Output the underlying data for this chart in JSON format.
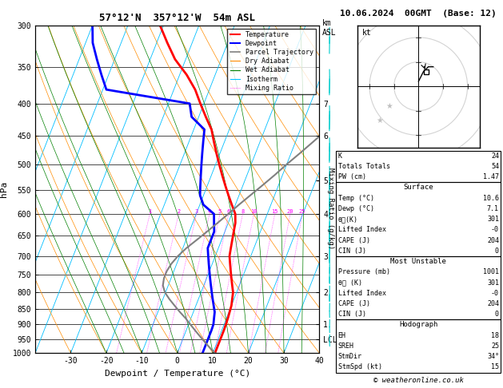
{
  "title_left": "57°12'N  357°12'W  54m ASL",
  "title_right": "10.06.2024  00GMT  (Base: 12)",
  "copyright": "© weatheronline.co.uk",
  "xlabel": "Dewpoint / Temperature (°C)",
  "ylabel_left": "hPa",
  "pressure_levels": [
    300,
    350,
    400,
    450,
    500,
    550,
    600,
    650,
    700,
    750,
    800,
    850,
    900,
    950,
    1000
  ],
  "temp_ticks": [
    -30,
    -20,
    -10,
    0,
    10,
    20,
    30,
    40
  ],
  "km_ticks": {
    "7": 400,
    "6": 450,
    "5": 530,
    "4": 600,
    "3": 700,
    "2": 800,
    "1": 900,
    "LCL": 950
  },
  "mixing_ratio_values": [
    1,
    2,
    3,
    4,
    5,
    6,
    8,
    10,
    15,
    20,
    25
  ],
  "temperature_profile_p": [
    300,
    320,
    340,
    360,
    380,
    400,
    420,
    440,
    460,
    480,
    500,
    520,
    540,
    560,
    580,
    600,
    620,
    640,
    660,
    680,
    700,
    720,
    740,
    760,
    780,
    800,
    820,
    840,
    860,
    880,
    900,
    920,
    940,
    960,
    980,
    1000
  ],
  "temperature_profile_t": [
    -41,
    -37,
    -33,
    -28,
    -24,
    -21,
    -18,
    -15,
    -13,
    -11,
    -9,
    -7,
    -5,
    -3,
    -1,
    1,
    2,
    2.5,
    3,
    3.5,
    4,
    5,
    6,
    7,
    8,
    9,
    9.5,
    10,
    10.2,
    10.4,
    10.5,
    10.6,
    10.6,
    10.6,
    10.6,
    10.6
  ],
  "dewpoint_profile_p": [
    300,
    320,
    340,
    360,
    380,
    400,
    420,
    440,
    460,
    480,
    500,
    520,
    540,
    560,
    580,
    600,
    620,
    640,
    660,
    680,
    700,
    720,
    740,
    760,
    780,
    800,
    820,
    840,
    860,
    880,
    900,
    920,
    940,
    960,
    980,
    1000
  ],
  "dewpoint_profile_t": [
    -60,
    -58,
    -55,
    -52,
    -49,
    -24,
    -22,
    -17,
    -16,
    -15,
    -14,
    -13,
    -12,
    -11,
    -9,
    -5,
    -4,
    -3,
    -3,
    -3,
    -2,
    -1,
    0,
    1,
    2,
    3,
    4,
    5,
    6,
    6.5,
    7,
    7.1,
    7.1,
    7.1,
    7.1,
    7.1
  ],
  "parcel_profile_p": [
    1000,
    980,
    960,
    940,
    920,
    900,
    880,
    860,
    840,
    820,
    800,
    780,
    760,
    740,
    720,
    700,
    680,
    660,
    640,
    620,
    600,
    580,
    560,
    540,
    520,
    500,
    480,
    460,
    440,
    420,
    400
  ],
  "parcel_profile_t": [
    10.6,
    8.5,
    6.5,
    4.5,
    2.5,
    0.5,
    -1.5,
    -3.8,
    -6.0,
    -8.2,
    -10.2,
    -11.5,
    -12.0,
    -12.0,
    -11.5,
    -10.5,
    -9.0,
    -7.0,
    -5.0,
    -3.0,
    -1.0,
    1.0,
    3.2,
    5.5,
    7.8,
    10.0,
    12.5,
    15.0,
    17.5,
    20.0,
    22.5
  ],
  "colors": {
    "temperature": "#ff0000",
    "dewpoint": "#0000ff",
    "parcel": "#808080",
    "dry_adiabat": "#ff8c00",
    "wet_adiabat": "#008000",
    "isotherm": "#00bfff",
    "mixing_ratio": "#ff00ff",
    "background": "#ffffff",
    "wind_barb": "#00cccc"
  },
  "wind_barbs_p": [
    300,
    350,
    400,
    450,
    500,
    550,
    600,
    650,
    700,
    750,
    800,
    850,
    900,
    950,
    1000
  ],
  "wind_barbs_u": [
    -8,
    -10,
    -12,
    -14,
    -15,
    -14,
    -12,
    -10,
    -8,
    -6,
    -5,
    -4,
    -3,
    -2,
    0
  ],
  "wind_barbs_v": [
    18,
    20,
    22,
    24,
    25,
    24,
    22,
    18,
    14,
    10,
    8,
    6,
    4,
    2,
    2
  ],
  "skew_factor": 30.0,
  "t_min": -40,
  "t_max": 40,
  "p_min": 300,
  "p_max": 1000,
  "stats": {
    "K": "24",
    "Totals_Totals": "54",
    "PW_cm": "1.47",
    "Surface_Temp": "10.6",
    "Surface_Dewp": "7.1",
    "Surface_theta_e": "301",
    "Surface_Lifted_Index": "-0",
    "Surface_CAPE": "204",
    "Surface_CIN": "0",
    "MU_Pressure": "1001",
    "MU_theta_e": "301",
    "MU_Lifted_Index": "-0",
    "MU_CAPE": "204",
    "MU_CIN": "0",
    "EH": "18",
    "SREH": "25",
    "StmDir": "34°",
    "StmSpd": "15"
  }
}
